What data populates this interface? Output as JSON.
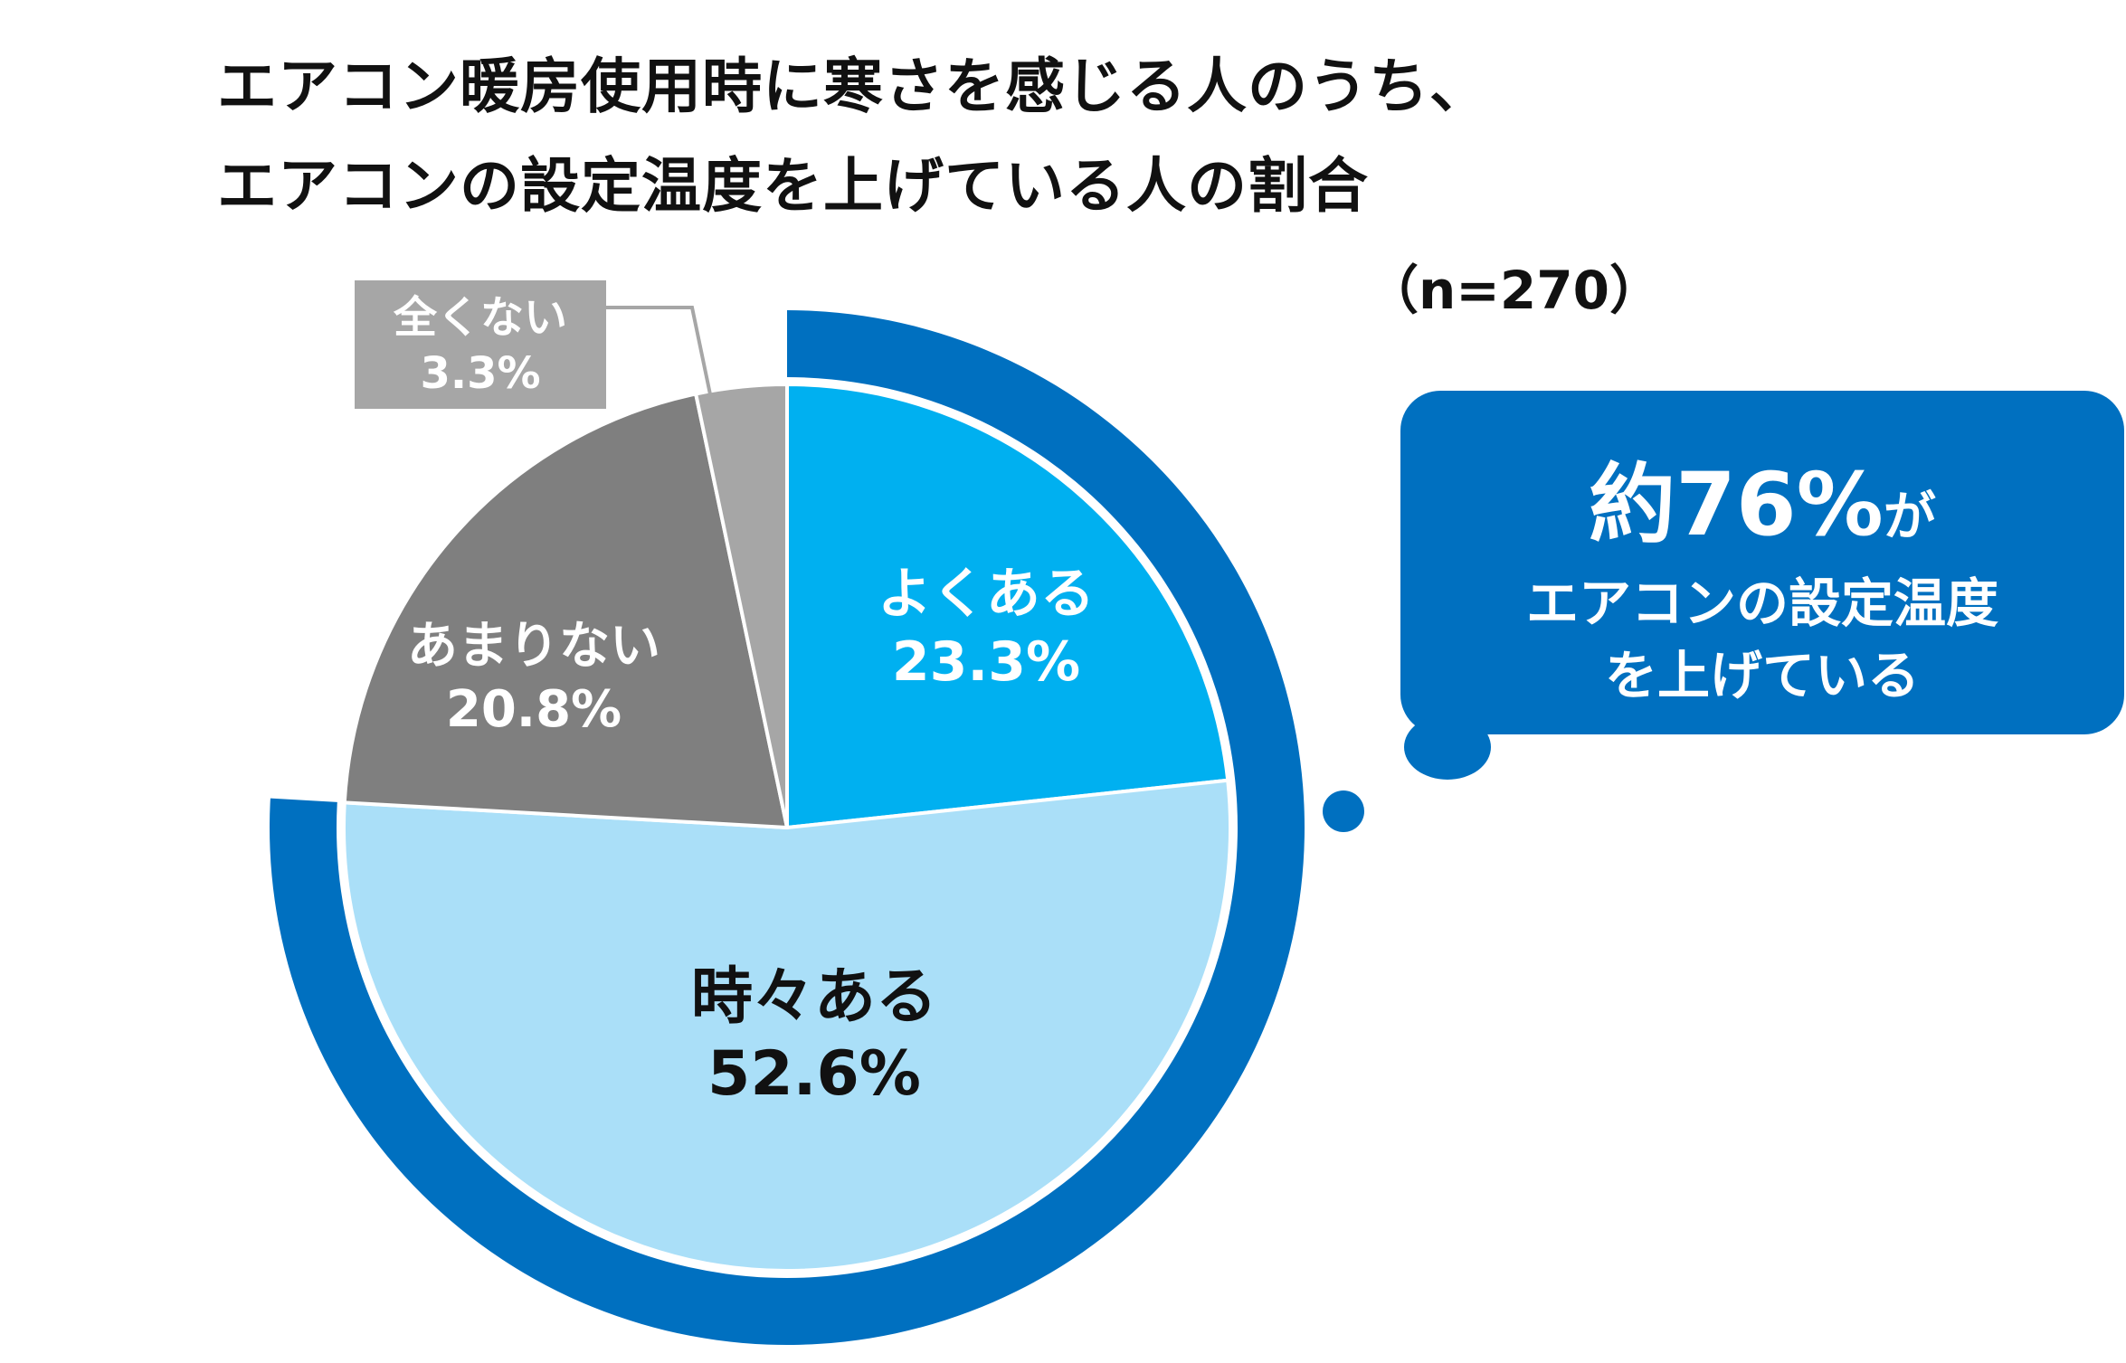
{
  "title": {
    "line1": "エアコン暖房使用時に寒さを感じる人のうち、",
    "line2": "エアコンの設定温度を上げている人の割合"
  },
  "sample_size": "（n=270）",
  "chart_data": {
    "type": "pie",
    "title": "エアコン暖房使用時に寒さを感じる人のうち、エアコンの設定温度を上げている人の割合",
    "n": 270,
    "unit": "%",
    "slices": [
      {
        "name": "よくある",
        "value": 23.3,
        "label": "23.3%",
        "color": "#00b0f0"
      },
      {
        "name": "時々ある",
        "value": 52.6,
        "label": "52.6%",
        "color": "#aadff8"
      },
      {
        "name": "あまりない",
        "value": 20.8,
        "label": "20.8%",
        "color": "#7f7f7f"
      },
      {
        "name": "全くない",
        "value": 3.3,
        "label": "3.3%",
        "color": "#a6a6a6"
      }
    ],
    "highlight": {
      "slices": [
        "よくある",
        "時々ある"
      ],
      "approx_total_percent": 76,
      "ring_color": "#0070c0"
    },
    "start": "12 o'clock",
    "direction": "clockwise"
  },
  "callout": {
    "big": "約76%",
    "suffix": "が",
    "line2": "エアコンの設定温度",
    "line3": "を上げている"
  },
  "colors": {
    "accent": "#0070c0",
    "slice_border": "#ffffff"
  }
}
